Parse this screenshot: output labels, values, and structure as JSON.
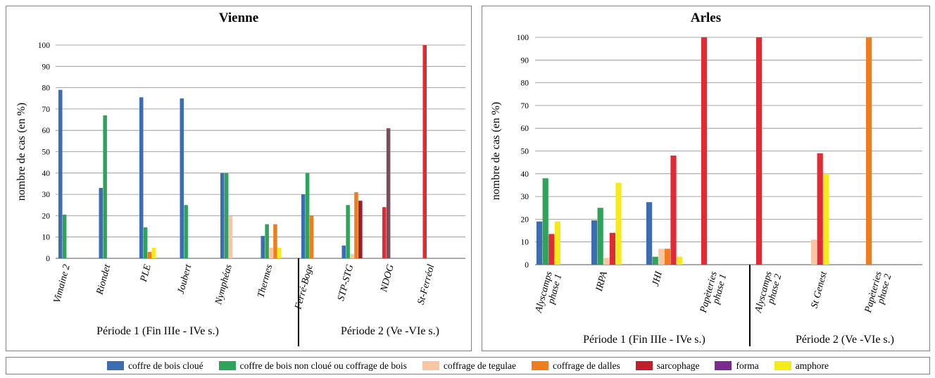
{
  "colors": {
    "coffre_cloue": "#3b6db0",
    "coffre_non_cloue": "#2fa35a",
    "tegulae": "#f8c6a3",
    "dalles": "#ee7d1d",
    "sarcophage": "#e02b35",
    "sarcophage_dark": "#9e1b2c",
    "forma": "#7b2a8e",
    "amphore": "#f5ea1a",
    "ndog_mauve": "#7a4f5b"
  },
  "legend": [
    {
      "label": "coffre de bois cloué",
      "color": "#3b6db0"
    },
    {
      "label": "coffre de bois non cloué ou coffrage de bois",
      "color": "#2fa35a"
    },
    {
      "label": "coffrage de tegulae",
      "color": "#f8c6a3"
    },
    {
      "label": "coffrage de dalles",
      "color": "#ee7d1d"
    },
    {
      "label": "sarcophage",
      "color": "#c01e2d"
    },
    {
      "label": "forma",
      "color": "#7b2a8e"
    },
    {
      "label": "amphore",
      "color": "#f5ea1a"
    }
  ],
  "chart_data": [
    {
      "type": "bar",
      "title": "Vienne",
      "ylabel": "nombre de cas (en %)",
      "ylim": [
        0,
        100
      ],
      "yticks": [
        0,
        10,
        20,
        30,
        40,
        50,
        60,
        70,
        80,
        90,
        100
      ],
      "categories": [
        "Vimaine 2",
        "Riondet",
        "PLE",
        "Joubert",
        "Nymphéas",
        "Thermes",
        "Ferré-Boge",
        "STP-STG",
        "NDOG",
        "St-Ferréol"
      ],
      "periods": [
        "Période 1 (Fin IIIe - IVe s.)",
        "Période 2 (Ve -VIe s.)"
      ],
      "bars": [
        {
          "category": "Vimaine 2",
          "items": [
            {
              "color": "coffre_cloue",
              "value": 79
            },
            {
              "color": "coffre_non_cloue",
              "value": 20.5
            }
          ]
        },
        {
          "category": "Riondet",
          "items": [
            {
              "color": "coffre_cloue",
              "value": 33
            },
            {
              "color": "coffre_non_cloue",
              "value": 67
            }
          ]
        },
        {
          "category": "PLE",
          "items": [
            {
              "color": "coffre_cloue",
              "value": 75.5
            },
            {
              "color": "coffre_non_cloue",
              "value": 14.5
            },
            {
              "color": "dalles",
              "value": 3
            },
            {
              "color": "amphore",
              "value": 5
            }
          ]
        },
        {
          "category": "Joubert",
          "items": [
            {
              "color": "coffre_cloue",
              "value": 75
            },
            {
              "color": "coffre_non_cloue",
              "value": 25
            }
          ]
        },
        {
          "category": "Nymphéas",
          "items": [
            {
              "color": "coffre_cloue",
              "value": 40
            },
            {
              "color": "coffre_non_cloue",
              "value": 40
            },
            {
              "color": "tegulae",
              "value": 20
            }
          ]
        },
        {
          "category": "Thermes",
          "items": [
            {
              "color": "coffre_cloue",
              "value": 10.5
            },
            {
              "color": "coffre_non_cloue",
              "value": 16
            },
            {
              "color": "tegulae",
              "value": 5
            },
            {
              "color": "dalles",
              "value": 16
            },
            {
              "color": "amphore",
              "value": 5
            }
          ]
        },
        {
          "category": "Ferré-Boge",
          "items": [
            {
              "color": "coffre_cloue",
              "value": 30
            },
            {
              "color": "coffre_non_cloue",
              "value": 40
            },
            {
              "color": "dalles",
              "value": 20
            }
          ]
        },
        {
          "category": "STP-STG",
          "items": [
            {
              "color": "coffre_cloue",
              "value": 6
            },
            {
              "color": "coffre_non_cloue",
              "value": 25
            },
            {
              "color": "tegulae",
              "value": 2
            },
            {
              "color": "dalles",
              "value": 31
            },
            {
              "color": "sarcophage_dark",
              "value": 27
            }
          ]
        },
        {
          "category": "NDOG",
          "items": [
            {
              "color": "sarcophage",
              "value": 24
            },
            {
              "color": "ndog_mauve",
              "value": 61
            }
          ]
        },
        {
          "category": "St-Ferréol",
          "items": [
            {
              "color": "sarcophage",
              "value": 100
            }
          ]
        }
      ]
    },
    {
      "type": "bar",
      "title": "Arles",
      "ylabel": "nombre de cas (en %)",
      "ylim": [
        0,
        100
      ],
      "yticks": [
        0,
        10,
        20,
        30,
        40,
        50,
        60,
        70,
        80,
        90,
        100
      ],
      "categories": [
        "Alyscamps\nphase 1",
        "IRPA",
        "JHI",
        "Papèteries\nphase 1",
        "Alyscamps\nphase 2",
        "St Genest",
        "Papèteries\nphase 2"
      ],
      "periods": [
        "Période 1 (Fin IIIe - IVe s.)",
        "Période 2 (Ve -VIe s.)"
      ],
      "bars": [
        {
          "category": "Alyscamps phase 1",
          "items": [
            {
              "color": "coffre_cloue",
              "value": 19
            },
            {
              "color": "coffre_non_cloue",
              "value": 38
            },
            {
              "color": "sarcophage",
              "value": 13.5
            },
            {
              "color": "amphore",
              "value": 19
            }
          ]
        },
        {
          "category": "IRPA",
          "items": [
            {
              "color": "coffre_cloue",
              "value": 19.5
            },
            {
              "color": "coffre_non_cloue",
              "value": 25
            },
            {
              "color": "tegulae",
              "value": 3
            },
            {
              "color": "sarcophage",
              "value": 14
            },
            {
              "color": "amphore",
              "value": 36
            }
          ]
        },
        {
          "category": "JHI",
          "items": [
            {
              "color": "coffre_cloue",
              "value": 27.5
            },
            {
              "color": "coffre_non_cloue",
              "value": 3.5
            },
            {
              "color": "tegulae",
              "value": 7
            },
            {
              "color": "dalles",
              "value": 7
            },
            {
              "color": "sarcophage",
              "value": 48
            },
            {
              "color": "amphore",
              "value": 3.5
            }
          ]
        },
        {
          "category": "Papèteries phase 1",
          "items": [
            {
              "color": "sarcophage",
              "value": 100
            }
          ]
        },
        {
          "category": "Alyscamps phase 2",
          "items": [
            {
              "color": "sarcophage",
              "value": 100
            }
          ]
        },
        {
          "category": "St Genest",
          "items": [
            {
              "color": "tegulae",
              "value": 11
            },
            {
              "color": "sarcophage",
              "value": 49
            },
            {
              "color": "amphore",
              "value": 40
            }
          ]
        },
        {
          "category": "Papèteries phase 2",
          "items": [
            {
              "color": "dalles",
              "value": 100
            }
          ]
        }
      ]
    }
  ]
}
